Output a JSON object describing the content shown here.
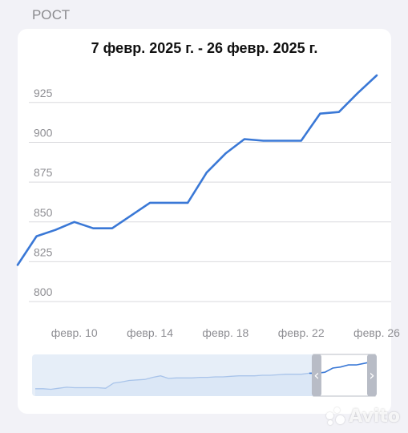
{
  "section": {
    "title": "РОСТ"
  },
  "card": {
    "range_title": "7 февр. 2025 г. - 26 февр. 2025 г."
  },
  "colors": {
    "line": "#3a78d6",
    "grid": "#d9d9dd",
    "axis_text": "#8e8e93",
    "navigator_fill": "#e6eef8",
    "handle": "#b8bcc6"
  },
  "chart_data": {
    "type": "line",
    "title": "7 февр. 2025 г. - 26 февр. 2025 г.",
    "xlabel": "",
    "ylabel": "",
    "ylim": [
      795,
      940
    ],
    "yticks": [
      800,
      825,
      850,
      875,
      900,
      925
    ],
    "x_range": [
      "2025-02-07",
      "2025-02-26"
    ],
    "xticks": [
      {
        "date": "2025-02-10",
        "label": "февр. 10"
      },
      {
        "date": "2025-02-14",
        "label": "февр. 14"
      },
      {
        "date": "2025-02-18",
        "label": "февр. 18"
      },
      {
        "date": "2025-02-22",
        "label": "февр. 22"
      },
      {
        "date": "2025-02-26",
        "label": "февр. 26"
      }
    ],
    "grid": true,
    "series": [
      {
        "points": [
          {
            "x": "2025-02-07",
            "y": 823
          },
          {
            "x": "2025-02-08",
            "y": 841
          },
          {
            "x": "2025-02-09",
            "y": 845
          },
          {
            "x": "2025-02-10",
            "y": 850
          },
          {
            "x": "2025-02-11",
            "y": 846
          },
          {
            "x": "2025-02-12",
            "y": 846
          },
          {
            "x": "2025-02-13",
            "y": 854
          },
          {
            "x": "2025-02-14",
            "y": 862
          },
          {
            "x": "2025-02-15",
            "y": 862
          },
          {
            "x": "2025-02-16",
            "y": 862
          },
          {
            "x": "2025-02-17",
            "y": 881
          },
          {
            "x": "2025-02-18",
            "y": 893
          },
          {
            "x": "2025-02-19",
            "y": 902
          },
          {
            "x": "2025-02-20",
            "y": 901
          },
          {
            "x": "2025-02-21",
            "y": 901
          },
          {
            "x": "2025-02-22",
            "y": 901
          },
          {
            "x": "2025-02-23",
            "y": 918
          },
          {
            "x": "2025-02-24",
            "y": 919
          },
          {
            "x": "2025-02-25",
            "y": 931
          },
          {
            "x": "2025-02-26",
            "y": 942
          }
        ]
      }
    ],
    "navigator": {
      "overview_values": [
        808,
        808,
        807,
        809,
        811,
        810,
        810,
        810,
        810,
        809,
        819,
        821,
        824,
        825,
        826,
        830,
        833,
        828,
        829,
        829,
        829,
        830,
        830,
        831,
        831,
        832,
        833,
        833,
        833,
        834,
        834,
        835,
        836,
        836,
        836,
        838,
        838,
        840,
        848,
        850,
        854,
        854,
        857,
        860
      ],
      "selection_start_fraction": 0.82,
      "left_handle_glyph": "‹",
      "right_handle_glyph": "›"
    }
  },
  "watermark": {
    "text": "Avito"
  }
}
